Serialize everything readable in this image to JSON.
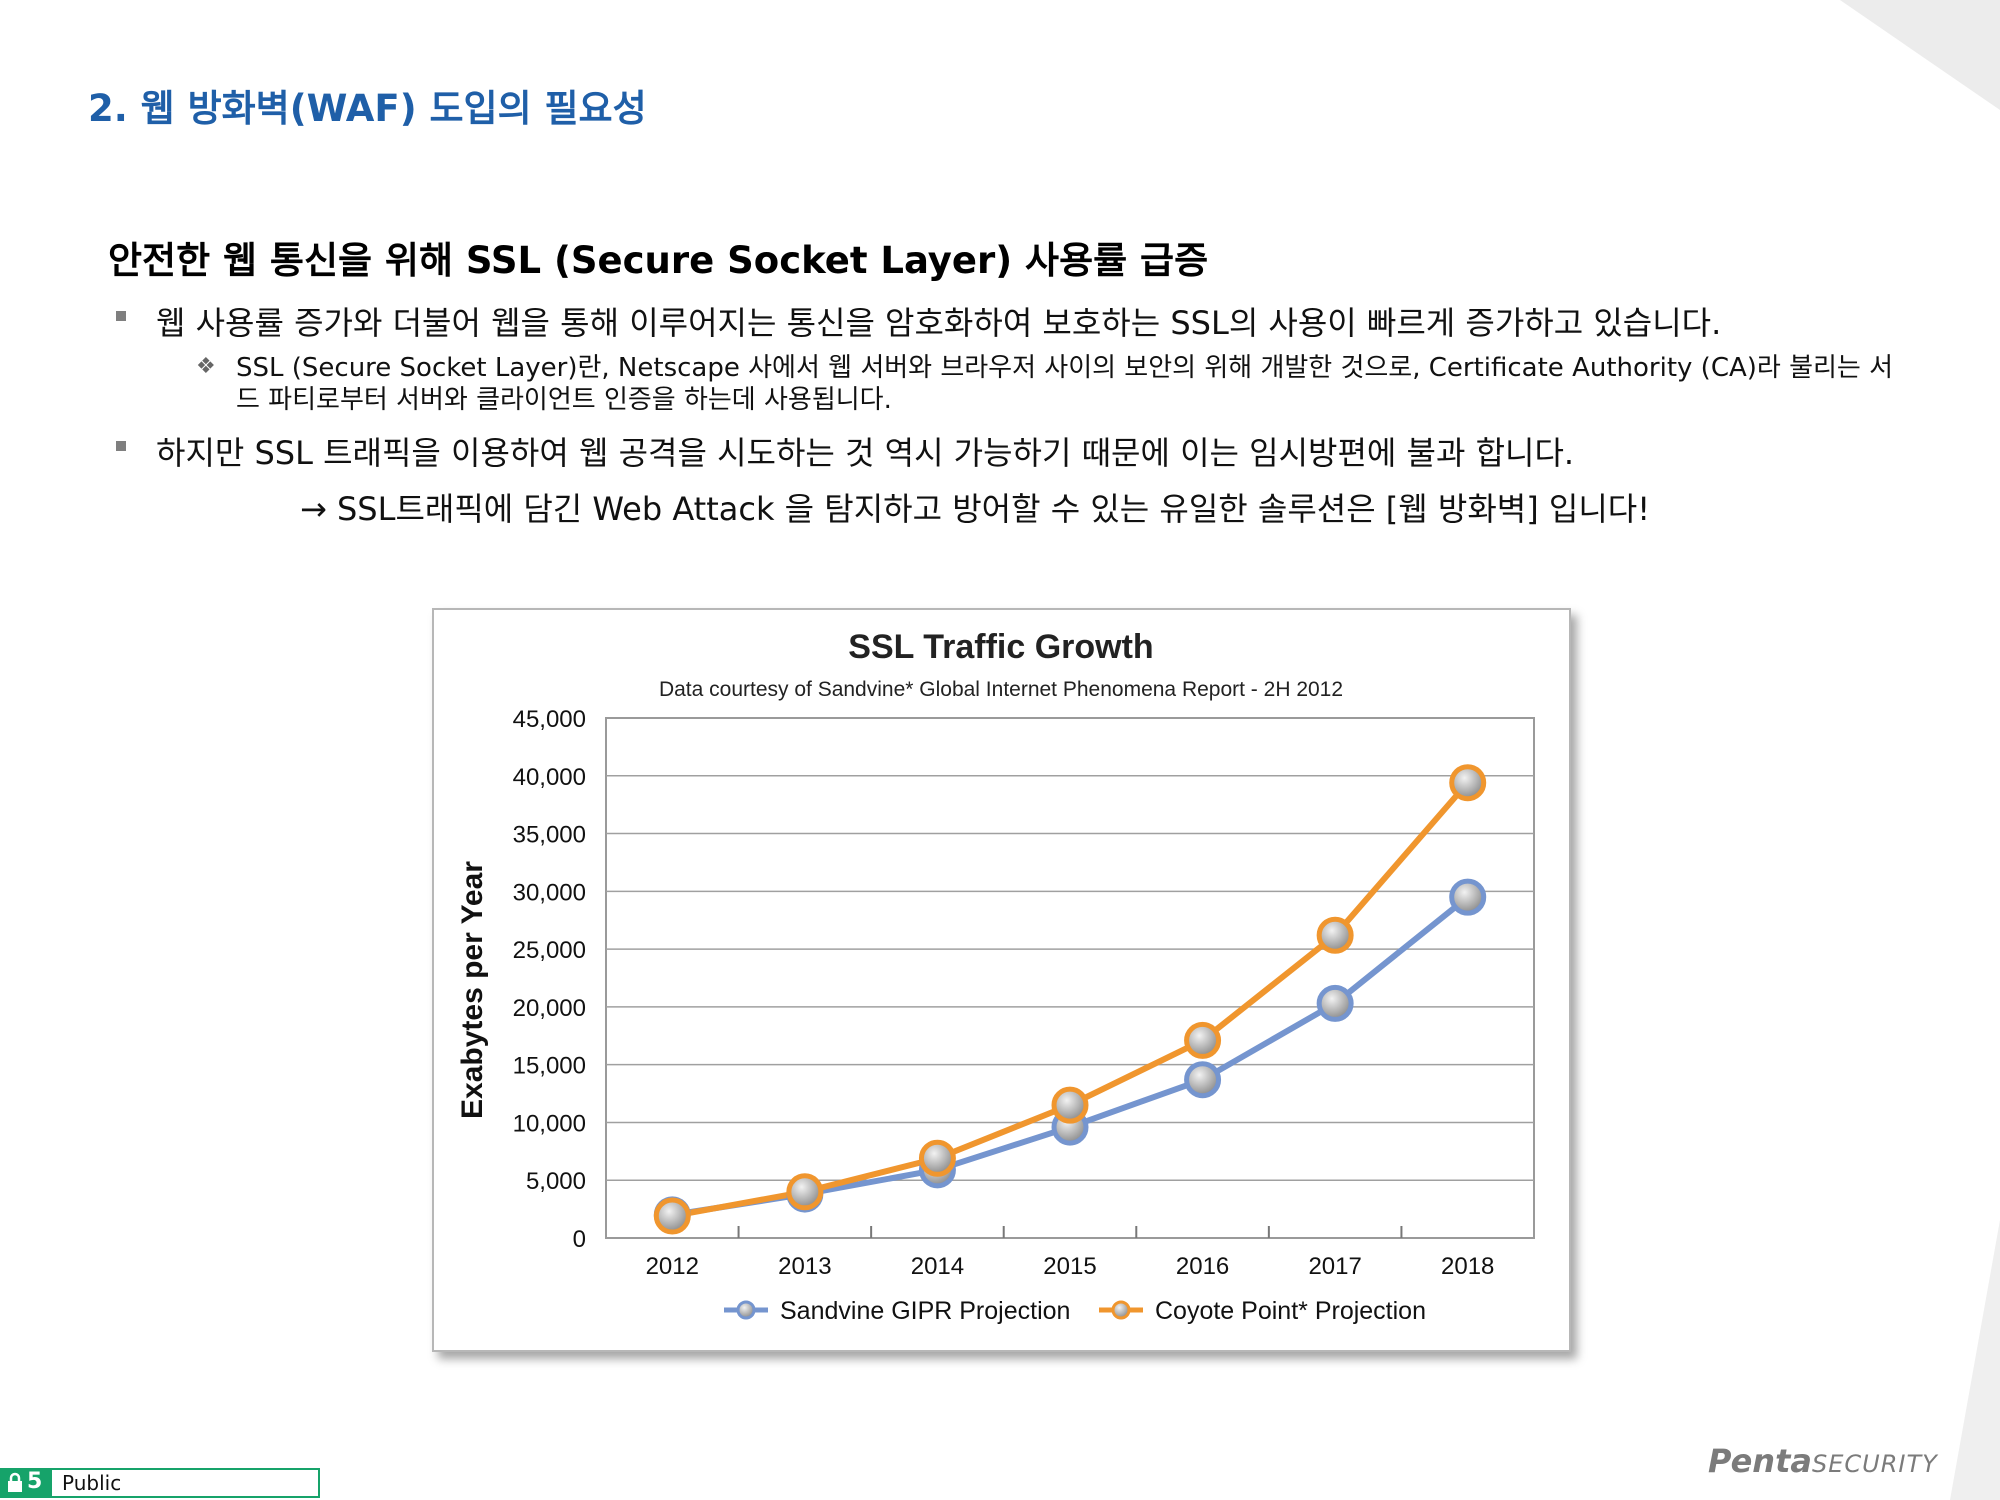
{
  "page": {
    "title": "2. 웹 방화벽(WAF) 도입의 필요성",
    "section_heading": "안전한 웹 통신을 위해 SSL (Secure Socket Layer) 사용률 급증",
    "bullets": [
      {
        "text": "웹 사용률 증가와 더불어 웹을 통해 이루어지는 통신을 암호화하여 보호하는 SSL의 사용이 빠르게 증가하고 있습니다."
      },
      {
        "text": "하지만 SSL 트래픽을 이용하여 웹 공격을 시도하는 것 역시 가능하기 때문에 이는 임시방편에 불과 합니다."
      }
    ],
    "sub_bullet": "SSL (Secure Socket Layer)란, Netscape 사에서 웹 서버와 브라우저 사이의 보안의 위해 개발한 것으로, Certificate Authority (CA)라 불리는 서드 파티로부터 서버와 클라이언트 인증을 하는데 사용됩니다.",
    "conclusion": "→ SSL트래픽에 담긴 Web Attack 을 탐지하고 방어할 수 있는 유일한 솔루션은 [웹 방화벽] 입니다!"
  },
  "footer": {
    "page_number": "5",
    "classification": "Public",
    "brand_strong": "Penta",
    "brand_light": "SECURITY"
  },
  "colors": {
    "title": "#1f5fa8",
    "sandvine": "#7595cf",
    "coyote": "#f0962e",
    "badge": "#16a36a"
  },
  "chart_data": {
    "type": "line",
    "title": "SSL Traffic Growth",
    "subtitle": "Data courtesy of Sandvine* Global Internet Phenomena Report - 2H 2012",
    "ylabel": "Exabytes per Year",
    "xlabel": "",
    "categories": [
      "2012",
      "2013",
      "2014",
      "2015",
      "2016",
      "2017",
      "2018"
    ],
    "ylim": [
      0,
      45000
    ],
    "yticks": [
      "0",
      "5,000",
      "10,000",
      "15,000",
      "20,000",
      "25,000",
      "30,000",
      "35,000",
      "40,000",
      "45,000"
    ],
    "grid": true,
    "legend_position": "bottom",
    "series": [
      {
        "name": "Sandvine GIPR Projection",
        "values": [
          2000,
          3800,
          5900,
          9600,
          13700,
          20300,
          29500
        ]
      },
      {
        "name": "Coyote Point* Projection",
        "values": [
          1900,
          4000,
          6900,
          11500,
          17100,
          26200,
          39400
        ]
      }
    ]
  }
}
